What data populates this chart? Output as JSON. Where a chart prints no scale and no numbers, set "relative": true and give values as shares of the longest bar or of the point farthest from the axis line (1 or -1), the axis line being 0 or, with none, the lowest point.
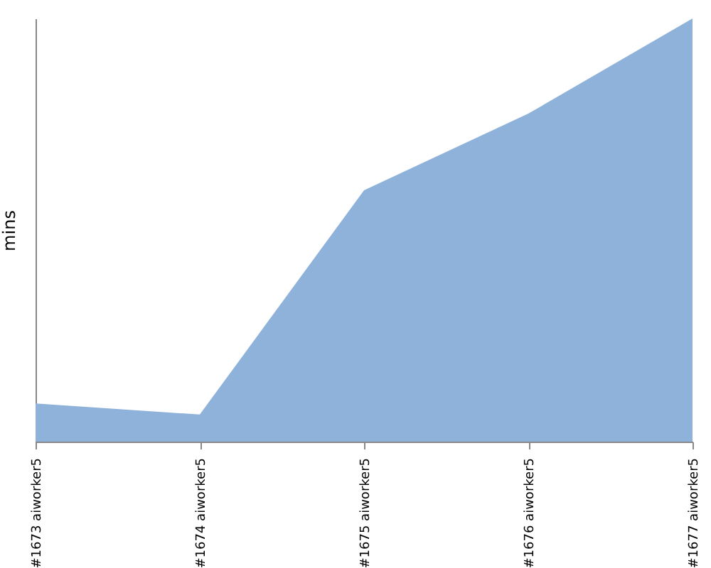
{
  "chart_data": {
    "type": "area",
    "ylabel": "mins",
    "relative": true,
    "categories": [
      "#1673 aiworker5",
      "#1674 aiworker5",
      "#1675 aiworker5",
      "#1676 aiworker5",
      "#1677 aiworker5"
    ],
    "series": [
      {
        "color": "#8fb2da",
        "values": [
          0.09,
          0.064,
          0.594,
          0.775,
          1
        ]
      }
    ]
  }
}
